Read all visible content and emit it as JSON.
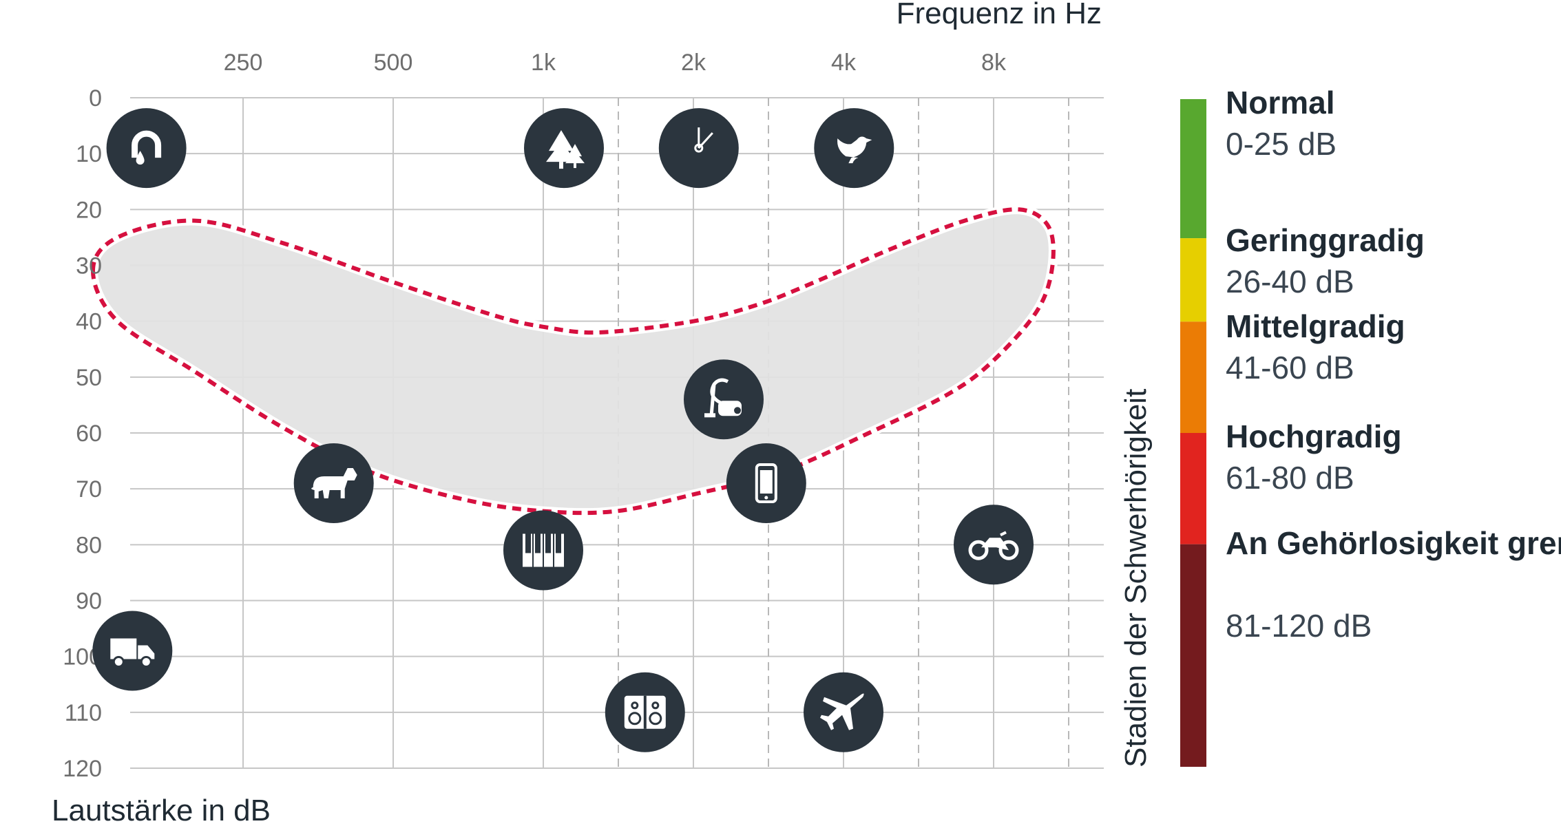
{
  "chart_data": {
    "type": "scatter",
    "x_title": "Frequenz in Hz",
    "y_title": "Lautstärke in dB",
    "legend_title": "Stadien der Schwerhörigkeit",
    "x_ticks": [
      "250",
      "500",
      "1k",
      "2k",
      "4k",
      "8k"
    ],
    "x_scale": "log2",
    "y_ticks": [
      "0",
      "10",
      "20",
      "30",
      "40",
      "50",
      "60",
      "70",
      "80",
      "90",
      "100",
      "110",
      "120"
    ],
    "ylim": [
      0,
      120
    ],
    "y_reversed": true,
    "grid": true,
    "icon_color": "#2b353e",
    "speech_banana": {
      "fill": "#e2e2e2",
      "stroke": "#d6103f",
      "outline_hz": [
        125,
        140,
        200,
        300,
        500,
        800,
        1000,
        1300,
        2000,
        2700,
        3500,
        5000,
        7000,
        9000,
        10300,
        10500,
        9800,
        8000,
        6500,
        4500,
        3000,
        2000,
        1400,
        1000,
        700,
        450,
        300,
        200,
        140,
        125
      ],
      "outline_db": [
        31,
        25,
        22,
        26,
        33,
        39,
        41,
        42,
        40,
        37,
        33,
        27,
        22,
        20,
        23,
        30,
        38,
        47,
        53,
        60,
        67,
        71,
        74,
        74,
        72,
        67,
        59,
        49,
        40,
        31
      ]
    },
    "points": [
      {
        "icon": "dripping-faucet-icon",
        "hz": 160,
        "db": 9
      },
      {
        "icon": "rustling-leaves-icon",
        "hz": 1100,
        "db": 9
      },
      {
        "icon": "clock-ticking-icon",
        "hz": 2050,
        "db": 9
      },
      {
        "icon": "bird-icon",
        "hz": 4200,
        "db": 9
      },
      {
        "icon": "vacuum-cleaner-icon",
        "hz": 2300,
        "db": 54
      },
      {
        "icon": "dog-icon",
        "hz": 380,
        "db": 69
      },
      {
        "icon": "telephone-icon",
        "hz": 2800,
        "db": 69
      },
      {
        "icon": "piano-icon",
        "hz": 1000,
        "db": 81
      },
      {
        "icon": "motorcycle-icon",
        "hz": 8000,
        "db": 80
      },
      {
        "icon": "truck-icon",
        "hz": 150,
        "db": 99
      },
      {
        "icon": "loudspeaker-icon",
        "hz": 1600,
        "db": 110
      },
      {
        "icon": "airplane-icon",
        "hz": 4000,
        "db": 110
      }
    ],
    "legend": [
      {
        "name": "Normal",
        "range": "0-25 dB",
        "from": 0,
        "to": 25,
        "color": "#58a82f"
      },
      {
        "name": "Geringgradig",
        "range": "26-40 dB",
        "from": 25,
        "to": 40,
        "color": "#e6cf00"
      },
      {
        "name": "Mittelgradig",
        "range": "41-60 dB",
        "from": 40,
        "to": 60,
        "color": "#eb7c05"
      },
      {
        "name": "Hochgradig",
        "range": "61-80 dB",
        "from": 60,
        "to": 80,
        "color": "#e1241f"
      },
      {
        "name": "An Gehörlosigkeit grenzend",
        "range": "81-120 dB",
        "from": 80,
        "to": 120,
        "color": "#741b1e"
      }
    ]
  }
}
